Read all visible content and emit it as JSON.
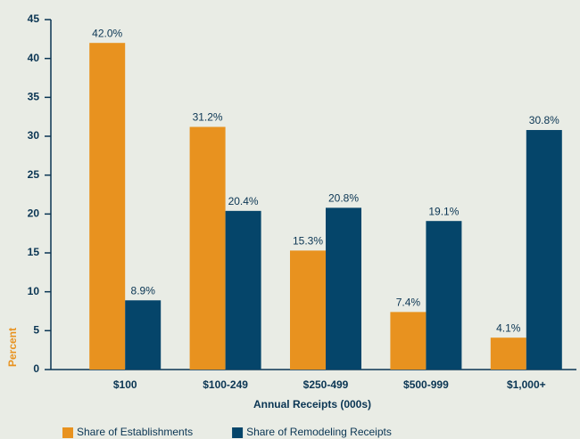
{
  "chart_data": {
    "type": "bar",
    "x_label": "Annual Receipts (000s)",
    "y_label": "Percent",
    "categories": [
      "$100",
      "$100-249",
      "$250-499",
      "$500-999",
      "$1,000+"
    ],
    "series": [
      {
        "name": "Share of Establishments",
        "color": "#e8921f",
        "values": [
          42.0,
          31.2,
          15.3,
          7.4,
          4.1
        ],
        "value_labels": [
          "42.0%",
          "31.2%",
          "15.3%",
          "7.4%",
          "4.1%"
        ]
      },
      {
        "name": "Share of Remodeling Receipts",
        "color": "#05456a",
        "values": [
          8.9,
          20.4,
          20.8,
          19.1,
          30.8
        ],
        "value_labels": [
          "8.9%",
          "20.4%",
          "20.8%",
          "19.1%",
          "30.8%"
        ]
      }
    ],
    "ylim": [
      0,
      45
    ],
    "yticks": [
      0,
      5,
      10,
      15,
      20,
      25,
      30,
      35,
      40,
      45
    ],
    "grid": false
  }
}
